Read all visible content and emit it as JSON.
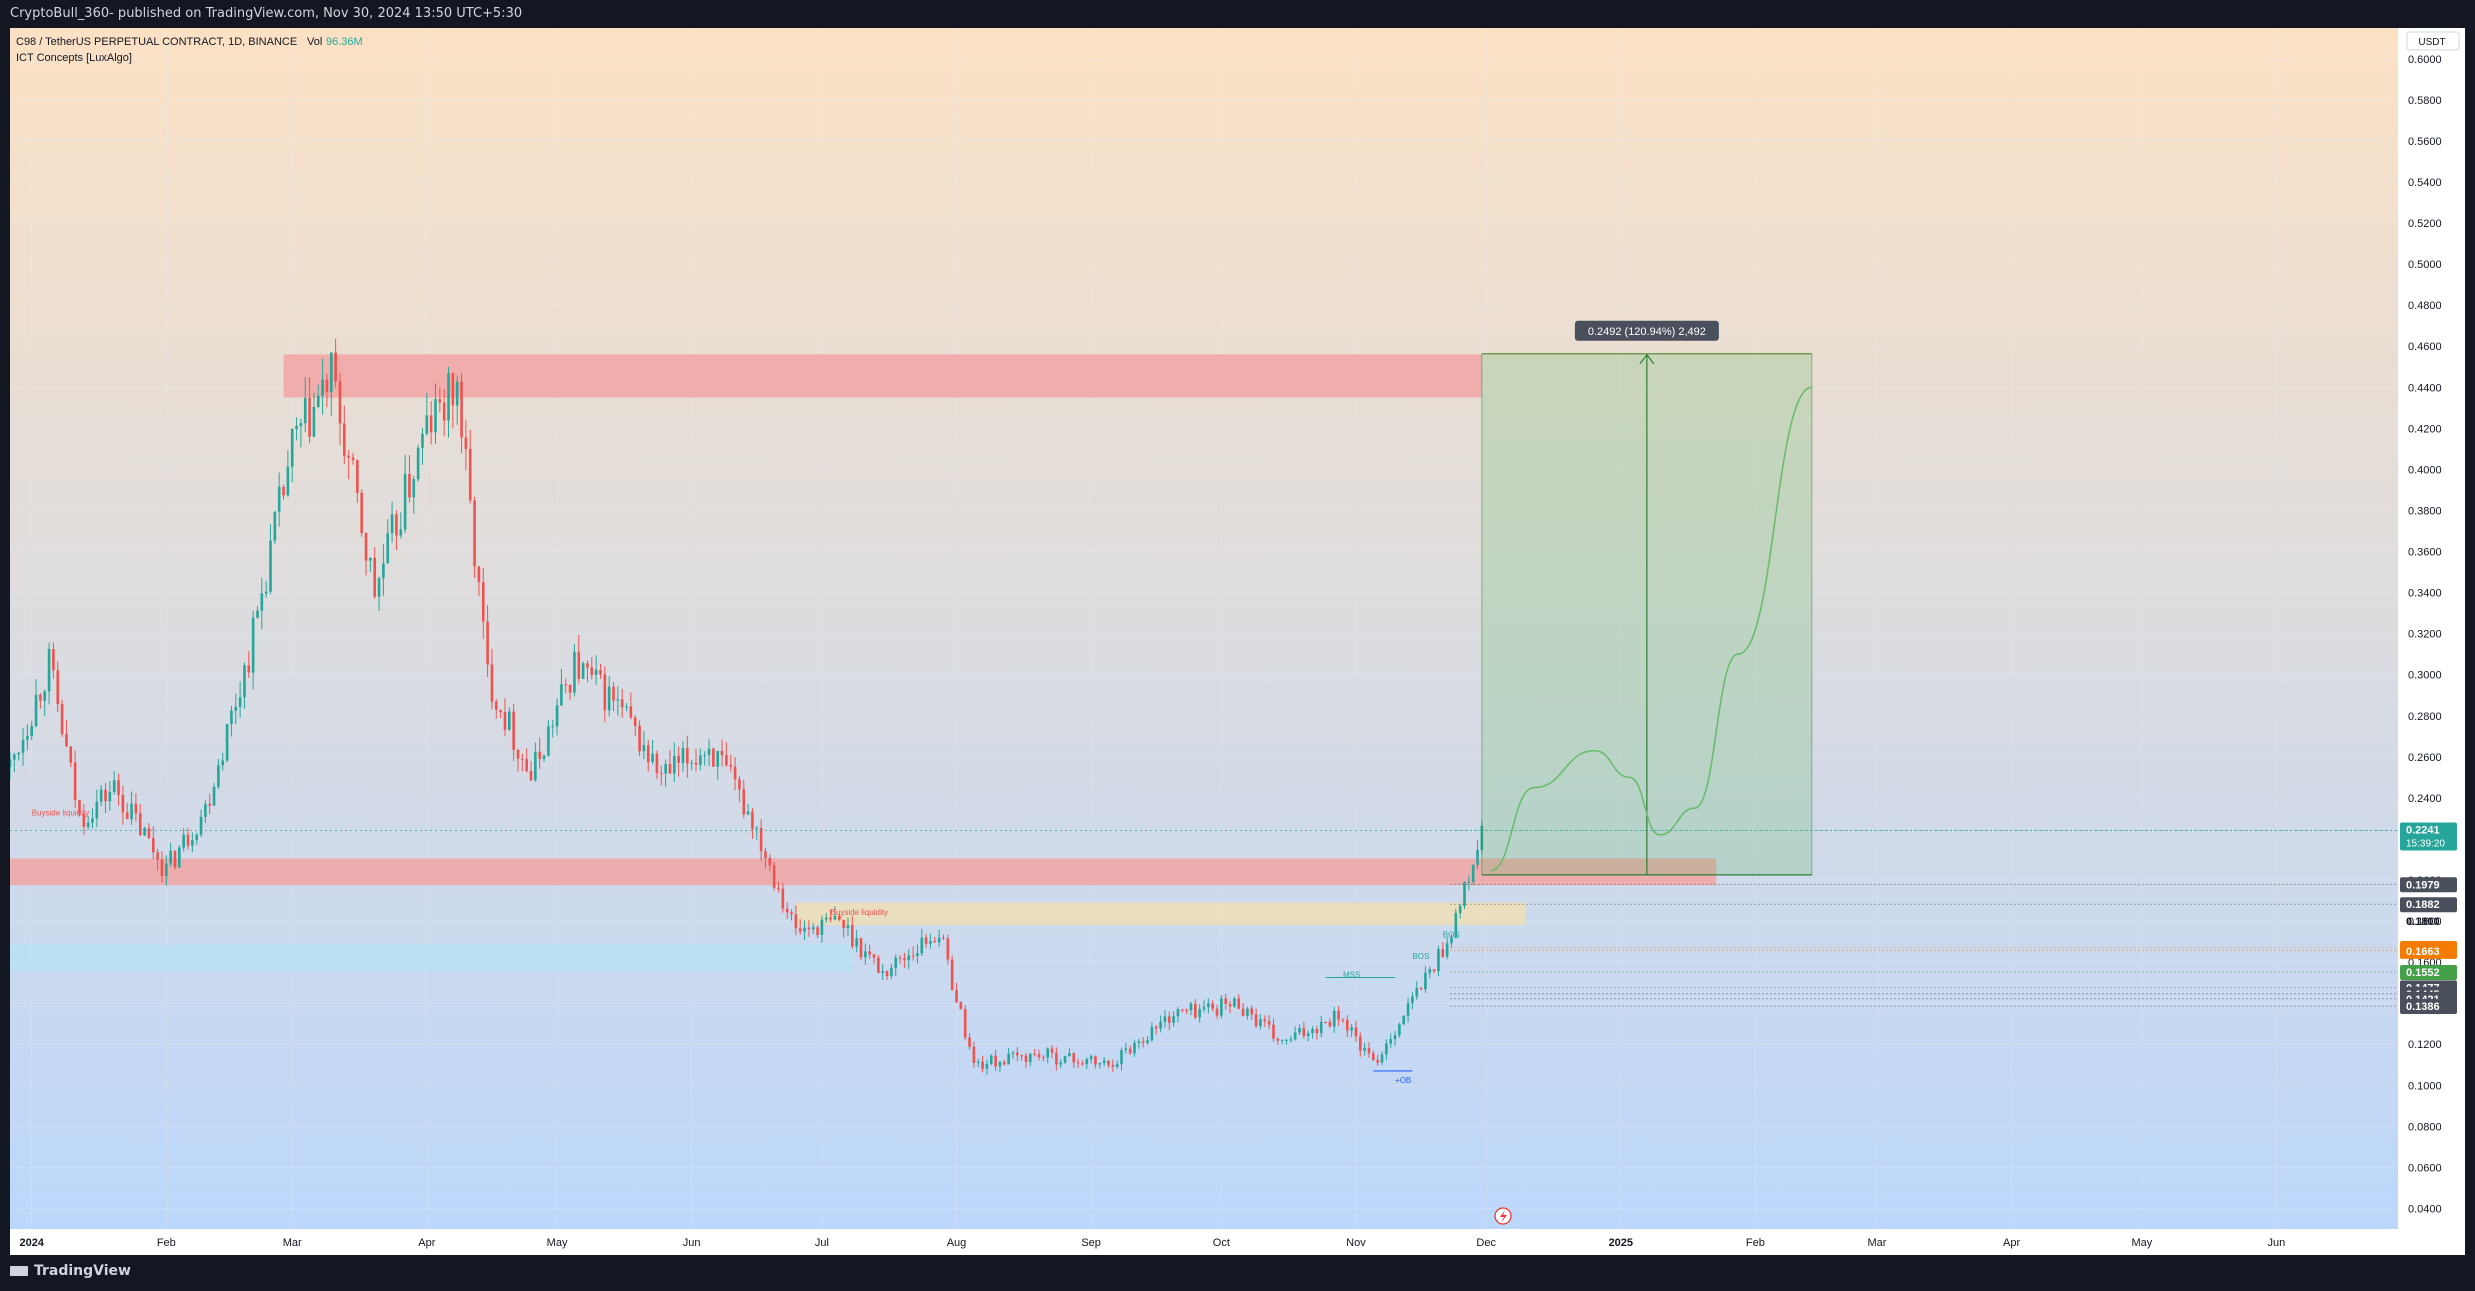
{
  "header": {
    "publish_line": "CryptoBull_360- published on TradingView.com, Nov 30, 2024 13:50 UTC+5:30"
  },
  "legend": {
    "symbol_line": "C98 / TetherUS PERPETUAL CONTRACT, 1D, BINANCE",
    "vol_label": "Vol",
    "vol_value": "96.36M",
    "indicator": "ICT Concepts [LuxAlgo]"
  },
  "footer": {
    "brand": "TradingView"
  },
  "colors": {
    "bull": "#26a69a",
    "bear": "#ef5350",
    "bg_top": "#fbe1c4",
    "bg_bottom": "#bcd7fb",
    "axis_bg": "#ffffff",
    "grid": "#e6e9ef",
    "supply_zone": "#f1a5a5",
    "demand_zone": "#b7e1f4",
    "projection": "#2e7d32"
  },
  "chart_data": {
    "type": "candlestick",
    "currency": "USDT",
    "ylim": [
      0.03,
      0.615
    ],
    "y_ticks": [
      "0.6000",
      "0.5800",
      "0.5600",
      "0.5400",
      "0.5200",
      "0.5000",
      "0.4800",
      "0.4600",
      "0.4400",
      "0.4200",
      "0.4000",
      "0.3800",
      "0.3600",
      "0.3400",
      "0.3200",
      "0.3000",
      "0.2800",
      "0.2600",
      "0.2400",
      "0.2200",
      "0.2000",
      "0.1800",
      "0.1600",
      "0.1400",
      "0.1200",
      "0.1000",
      "0.0800",
      "0.0600",
      "0.0400"
    ],
    "x_ticks": [
      "2024",
      "Feb",
      "Mar",
      "Apr",
      "May",
      "Jun",
      "Jul",
      "Aug",
      "Sep",
      "Oct",
      "Nov",
      "Dec",
      "2025",
      "Feb",
      "Mar",
      "Apr",
      "May",
      "Jun"
    ],
    "x_range": [
      "2023-12-27",
      "2025-06-29"
    ],
    "last_candle_date": "2024-11-30",
    "price_path_approx": [
      [
        "2023-12-27",
        0.255
      ],
      [
        "2024-01-05",
        0.305
      ],
      [
        "2024-01-12",
        0.23
      ],
      [
        "2024-01-20",
        0.245
      ],
      [
        "2024-02-01",
        0.205
      ],
      [
        "2024-02-10",
        0.235
      ],
      [
        "2024-02-20",
        0.31
      ],
      [
        "2024-03-01",
        0.41
      ],
      [
        "2024-03-10",
        0.445
      ],
      [
        "2024-03-20",
        0.34
      ],
      [
        "2024-04-01",
        0.42
      ],
      [
        "2024-04-08",
        0.44
      ],
      [
        "2024-04-15",
        0.3
      ],
      [
        "2024-04-25",
        0.25
      ],
      [
        "2024-05-05",
        0.305
      ],
      [
        "2024-05-15",
        0.285
      ],
      [
        "2024-05-25",
        0.25
      ],
      [
        "2024-06-05",
        0.265
      ],
      [
        "2024-06-15",
        0.23
      ],
      [
        "2024-06-25",
        0.175
      ],
      [
        "2024-07-05",
        0.18
      ],
      [
        "2024-07-15",
        0.155
      ],
      [
        "2024-07-28",
        0.175
      ],
      [
        "2024-08-05",
        0.11
      ],
      [
        "2024-08-20",
        0.115
      ],
      [
        "2024-09-05",
        0.11
      ],
      [
        "2024-09-20",
        0.135
      ],
      [
        "2024-10-05",
        0.14
      ],
      [
        "2024-10-15",
        0.12
      ],
      [
        "2024-10-28",
        0.135
      ],
      [
        "2024-11-05",
        0.11
      ],
      [
        "2024-11-15",
        0.145
      ],
      [
        "2024-11-22",
        0.17
      ],
      [
        "2024-11-27",
        0.2
      ],
      [
        "2024-11-30",
        0.2241
      ]
    ],
    "zones": [
      {
        "kind": "supply",
        "from": "2024-02-28",
        "to": "2024-11-30",
        "low": 0.435,
        "high": 0.456
      },
      {
        "kind": "supply",
        "from": "2023-12-27",
        "to": "2025-01-23",
        "low": 0.1975,
        "high": 0.2105
      },
      {
        "kind": "demand",
        "from": "2023-12-27",
        "to": "2024-07-08",
        "low": 0.1555,
        "high": 0.1685
      },
      {
        "kind": "liquidity",
        "from": "2024-06-25",
        "to": "2024-12-10",
        "low": 0.178,
        "high": 0.189
      }
    ],
    "annotations": [
      {
        "text": "Buyside liquidity",
        "date": "2024-01-01",
        "price": 0.2315
      },
      {
        "text": "Buyside liquidity",
        "date": "2024-07-03",
        "price": 0.183
      },
      {
        "text": "MSS",
        "date": "2024-10-29",
        "price": 0.1525
      },
      {
        "text": "+OB",
        "date": "2024-11-10",
        "price": 0.101
      },
      {
        "text": "BOS",
        "date": "2024-11-14",
        "price": 0.1615
      },
      {
        "text": "BOS",
        "date": "2024-11-21",
        "price": 0.172
      }
    ],
    "projection": {
      "label": "0.2492 (120.94%) 2,492",
      "from_date": "2024-11-30",
      "to_date": "2025-02-14",
      "entry": 0.2025,
      "target": 0.4563,
      "path": [
        [
          "2024-12-02",
          0.2045
        ],
        [
          "2024-12-12",
          0.245
        ],
        [
          "2024-12-26",
          0.263
        ],
        [
          "2025-01-03",
          0.25
        ],
        [
          "2025-01-10",
          0.222
        ],
        [
          "2025-01-18",
          0.235
        ],
        [
          "2025-01-28",
          0.31
        ],
        [
          "2025-02-14",
          0.44
        ]
      ]
    },
    "price_labels": [
      {
        "value": "0.2241",
        "sub": "15:39:20",
        "price": 0.2241,
        "bg": "#26a69a"
      },
      {
        "value": "0.1979",
        "price": 0.1979,
        "bg": "#4a4f5c"
      },
      {
        "value": "0.1882",
        "price": 0.1882,
        "bg": "#4a4f5c"
      },
      {
        "value": "0.1800",
        "price": 0.18,
        "bg": "none"
      },
      {
        "value": "0.1669",
        "price": 0.1669,
        "bg": "#f57c00"
      },
      {
        "value": "0.1663",
        "price": 0.1655,
        "bg": "#f57c00"
      },
      {
        "value": "0.1552",
        "price": 0.1552,
        "bg": "#43a047"
      },
      {
        "value": "0.1477",
        "price": 0.1477,
        "bg": "#4a4f5c"
      },
      {
        "value": "0.1445",
        "price": 0.1445,
        "bg": "#4a4f5c"
      },
      {
        "value": "0.1421",
        "price": 0.1421,
        "bg": "#4a4f5c"
      },
      {
        "value": "0.1386",
        "price": 0.1386,
        "bg": "#4a4f5c"
      }
    ],
    "title": "",
    "xlabel": "",
    "ylabel": ""
  }
}
